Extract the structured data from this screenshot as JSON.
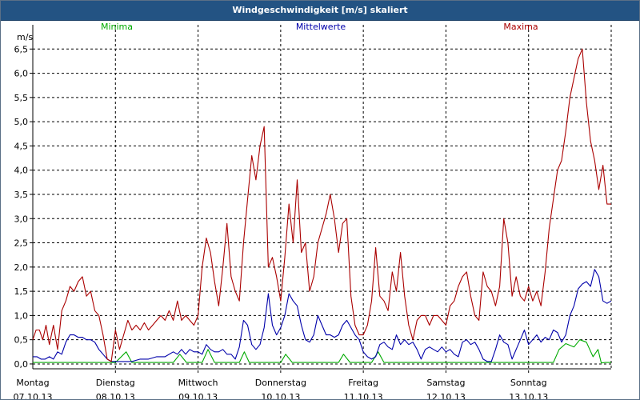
{
  "window": {
    "title": "Windgeschwindigkeit [m/s] skaliert"
  },
  "chart_data": {
    "type": "line",
    "title": "Windgeschwindigkeit [m/s] skaliert",
    "ylabel": "m/s",
    "ylim": [
      -0.1,
      7.0
    ],
    "yticks": [
      0.0,
      0.5,
      1.0,
      1.5,
      2.0,
      2.5,
      3.0,
      3.5,
      4.0,
      4.5,
      5.0,
      5.5,
      6.0,
      6.5
    ],
    "ytick_labels": [
      "0,0",
      "0,5",
      "1,0",
      "1,5",
      "2,0",
      "2,5",
      "3,0",
      "3,5",
      "4,0",
      "4,5",
      "5,0",
      "5,5",
      "6,0",
      "6,5"
    ],
    "x_range_days": [
      0,
      7
    ],
    "categories": [
      {
        "day": "Montag",
        "date": "07.10.13"
      },
      {
        "day": "Dienstag",
        "date": "08.10.13"
      },
      {
        "day": "Mittwoch",
        "date": "09.10.13"
      },
      {
        "day": "Donnerstag",
        "date": "10.10.13"
      },
      {
        "day": "Freitag",
        "date": "11.10.13"
      },
      {
        "day": "Samstag",
        "date": "12.10.13"
      },
      {
        "day": "Sonntag",
        "date": "13.10.13"
      }
    ],
    "grid": true,
    "legend_position": "top",
    "series": [
      {
        "name": "Minima",
        "color": "#00aa00",
        "values": [
          [
            0,
            0.03
          ],
          [
            1.0,
            0.03
          ],
          [
            1.13,
            0.25
          ],
          [
            1.2,
            0.03
          ],
          [
            1.7,
            0.03
          ],
          [
            1.78,
            0.2
          ],
          [
            1.86,
            0.03
          ],
          [
            2.05,
            0.03
          ],
          [
            2.12,
            0.3
          ],
          [
            2.2,
            0.03
          ],
          [
            2.5,
            0.03
          ],
          [
            2.56,
            0.25
          ],
          [
            2.62,
            0.03
          ],
          [
            3.0,
            0.03
          ],
          [
            3.06,
            0.2
          ],
          [
            3.14,
            0.03
          ],
          [
            3.7,
            0.03
          ],
          [
            3.76,
            0.2
          ],
          [
            3.84,
            0.03
          ],
          [
            4.1,
            0.03
          ],
          [
            4.18,
            0.25
          ],
          [
            4.25,
            0.03
          ],
          [
            6.0,
            0.03
          ],
          [
            6.3,
            0.03
          ],
          [
            6.37,
            0.3
          ],
          [
            6.45,
            0.42
          ],
          [
            6.55,
            0.35
          ],
          [
            6.62,
            0.5
          ],
          [
            6.7,
            0.45
          ],
          [
            6.78,
            0.15
          ],
          [
            6.84,
            0.3
          ],
          [
            6.88,
            0.02
          ],
          [
            6.93,
            0.03
          ],
          [
            7.0,
            0.03
          ]
        ]
      },
      {
        "name": "Mittelwerte",
        "color": "#0000aa",
        "values": [
          [
            0,
            0.15
          ],
          [
            0.05,
            0.15
          ],
          [
            0.1,
            0.1
          ],
          [
            0.15,
            0.1
          ],
          [
            0.2,
            0.15
          ],
          [
            0.25,
            0.1
          ],
          [
            0.3,
            0.25
          ],
          [
            0.35,
            0.2
          ],
          [
            0.4,
            0.45
          ],
          [
            0.45,
            0.6
          ],
          [
            0.5,
            0.6
          ],
          [
            0.55,
            0.55
          ],
          [
            0.6,
            0.55
          ],
          [
            0.65,
            0.5
          ],
          [
            0.7,
            0.5
          ],
          [
            0.75,
            0.45
          ],
          [
            0.8,
            0.3
          ],
          [
            0.85,
            0.2
          ],
          [
            0.9,
            0.1
          ],
          [
            0.95,
            0.05
          ],
          [
            1.0,
            0.05
          ],
          [
            1.1,
            0.05
          ],
          [
            1.2,
            0.05
          ],
          [
            1.3,
            0.1
          ],
          [
            1.4,
            0.1
          ],
          [
            1.5,
            0.15
          ],
          [
            1.6,
            0.15
          ],
          [
            1.7,
            0.25
          ],
          [
            1.75,
            0.2
          ],
          [
            1.8,
            0.3
          ],
          [
            1.85,
            0.2
          ],
          [
            1.9,
            0.3
          ],
          [
            1.95,
            0.25
          ],
          [
            2.0,
            0.25
          ],
          [
            2.05,
            0.2
          ],
          [
            2.1,
            0.4
          ],
          [
            2.15,
            0.3
          ],
          [
            2.2,
            0.25
          ],
          [
            2.25,
            0.25
          ],
          [
            2.3,
            0.3
          ],
          [
            2.35,
            0.2
          ],
          [
            2.4,
            0.2
          ],
          [
            2.45,
            0.1
          ],
          [
            2.5,
            0.35
          ],
          [
            2.55,
            0.9
          ],
          [
            2.6,
            0.8
          ],
          [
            2.65,
            0.4
          ],
          [
            2.7,
            0.3
          ],
          [
            2.75,
            0.4
          ],
          [
            2.8,
            0.75
          ],
          [
            2.85,
            1.45
          ],
          [
            2.9,
            0.8
          ],
          [
            2.95,
            0.6
          ],
          [
            3.0,
            0.75
          ],
          [
            3.05,
            1.0
          ],
          [
            3.1,
            1.45
          ],
          [
            3.15,
            1.3
          ],
          [
            3.2,
            1.2
          ],
          [
            3.25,
            0.8
          ],
          [
            3.3,
            0.5
          ],
          [
            3.35,
            0.45
          ],
          [
            3.4,
            0.6
          ],
          [
            3.45,
            1.0
          ],
          [
            3.5,
            0.8
          ],
          [
            3.55,
            0.6
          ],
          [
            3.6,
            0.6
          ],
          [
            3.65,
            0.55
          ],
          [
            3.7,
            0.6
          ],
          [
            3.75,
            0.8
          ],
          [
            3.8,
            0.9
          ],
          [
            3.85,
            0.75
          ],
          [
            3.9,
            0.6
          ],
          [
            3.95,
            0.5
          ],
          [
            4.0,
            0.25
          ],
          [
            4.05,
            0.15
          ],
          [
            4.1,
            0.1
          ],
          [
            4.15,
            0.15
          ],
          [
            4.2,
            0.4
          ],
          [
            4.25,
            0.45
          ],
          [
            4.3,
            0.35
          ],
          [
            4.35,
            0.3
          ],
          [
            4.4,
            0.6
          ],
          [
            4.45,
            0.4
          ],
          [
            4.5,
            0.5
          ],
          [
            4.55,
            0.4
          ],
          [
            4.6,
            0.45
          ],
          [
            4.65,
            0.3
          ],
          [
            4.7,
            0.1
          ],
          [
            4.75,
            0.3
          ],
          [
            4.8,
            0.35
          ],
          [
            4.85,
            0.3
          ],
          [
            4.9,
            0.25
          ],
          [
            4.95,
            0.35
          ],
          [
            5.0,
            0.25
          ],
          [
            5.05,
            0.3
          ],
          [
            5.1,
            0.2
          ],
          [
            5.15,
            0.15
          ],
          [
            5.2,
            0.45
          ],
          [
            5.25,
            0.5
          ],
          [
            5.3,
            0.4
          ],
          [
            5.35,
            0.45
          ],
          [
            5.4,
            0.3
          ],
          [
            5.45,
            0.1
          ],
          [
            5.5,
            0.05
          ],
          [
            5.55,
            0.05
          ],
          [
            5.6,
            0.3
          ],
          [
            5.65,
            0.6
          ],
          [
            5.7,
            0.45
          ],
          [
            5.75,
            0.4
          ],
          [
            5.8,
            0.1
          ],
          [
            5.85,
            0.3
          ],
          [
            5.9,
            0.5
          ],
          [
            5.95,
            0.7
          ],
          [
            6.0,
            0.4
          ],
          [
            6.05,
            0.5
          ],
          [
            6.1,
            0.6
          ],
          [
            6.15,
            0.45
          ],
          [
            6.2,
            0.55
          ],
          [
            6.25,
            0.5
          ],
          [
            6.3,
            0.7
          ],
          [
            6.35,
            0.65
          ],
          [
            6.4,
            0.45
          ],
          [
            6.45,
            0.6
          ],
          [
            6.5,
            1.0
          ],
          [
            6.55,
            1.2
          ],
          [
            6.6,
            1.55
          ],
          [
            6.65,
            1.65
          ],
          [
            6.7,
            1.7
          ],
          [
            6.75,
            1.6
          ],
          [
            6.8,
            1.95
          ],
          [
            6.85,
            1.8
          ],
          [
            6.9,
            1.3
          ],
          [
            6.95,
            1.25
          ],
          [
            7.0,
            1.3
          ]
        ]
      },
      {
        "name": "Maxima",
        "color": "#aa0000",
        "values": [
          [
            0,
            0.5
          ],
          [
            0.04,
            0.7
          ],
          [
            0.08,
            0.7
          ],
          [
            0.12,
            0.5
          ],
          [
            0.16,
            0.8
          ],
          [
            0.2,
            0.4
          ],
          [
            0.25,
            0.8
          ],
          [
            0.3,
            0.3
          ],
          [
            0.35,
            1.1
          ],
          [
            0.4,
            1.3
          ],
          [
            0.45,
            1.6
          ],
          [
            0.5,
            1.5
          ],
          [
            0.55,
            1.7
          ],
          [
            0.6,
            1.8
          ],
          [
            0.65,
            1.4
          ],
          [
            0.7,
            1.5
          ],
          [
            0.75,
            1.1
          ],
          [
            0.8,
            1.0
          ],
          [
            0.85,
            0.6
          ],
          [
            0.9,
            0.1
          ],
          [
            0.95,
            0.05
          ],
          [
            1.0,
            0.7
          ],
          [
            1.05,
            0.3
          ],
          [
            1.1,
            0.6
          ],
          [
            1.15,
            0.9
          ],
          [
            1.2,
            0.7
          ],
          [
            1.25,
            0.8
          ],
          [
            1.3,
            0.7
          ],
          [
            1.35,
            0.85
          ],
          [
            1.4,
            0.7
          ],
          [
            1.45,
            0.8
          ],
          [
            1.5,
            0.9
          ],
          [
            1.55,
            1.0
          ],
          [
            1.6,
            0.9
          ],
          [
            1.65,
            1.1
          ],
          [
            1.7,
            0.9
          ],
          [
            1.75,
            1.3
          ],
          [
            1.8,
            0.9
          ],
          [
            1.85,
            1.0
          ],
          [
            1.9,
            0.9
          ],
          [
            1.95,
            0.8
          ],
          [
            2.0,
            1.0
          ],
          [
            2.05,
            2.0
          ],
          [
            2.1,
            2.6
          ],
          [
            2.15,
            2.3
          ],
          [
            2.2,
            1.7
          ],
          [
            2.25,
            1.2
          ],
          [
            2.3,
            2.0
          ],
          [
            2.35,
            2.9
          ],
          [
            2.4,
            1.8
          ],
          [
            2.45,
            1.5
          ],
          [
            2.5,
            1.3
          ],
          [
            2.55,
            2.5
          ],
          [
            2.6,
            3.4
          ],
          [
            2.65,
            4.3
          ],
          [
            2.7,
            3.8
          ],
          [
            2.75,
            4.5
          ],
          [
            2.8,
            4.9
          ],
          [
            2.85,
            2.0
          ],
          [
            2.9,
            2.2
          ],
          [
            2.95,
            1.8
          ],
          [
            3.0,
            1.3
          ],
          [
            3.05,
            2.2
          ],
          [
            3.1,
            3.3
          ],
          [
            3.15,
            2.5
          ],
          [
            3.2,
            3.8
          ],
          [
            3.25,
            2.3
          ],
          [
            3.3,
            2.5
          ],
          [
            3.35,
            1.5
          ],
          [
            3.4,
            1.8
          ],
          [
            3.45,
            2.5
          ],
          [
            3.5,
            2.8
          ],
          [
            3.55,
            3.1
          ],
          [
            3.6,
            3.5
          ],
          [
            3.65,
            3.0
          ],
          [
            3.7,
            2.3
          ],
          [
            3.75,
            2.9
          ],
          [
            3.8,
            3.0
          ],
          [
            3.85,
            1.4
          ],
          [
            3.9,
            0.8
          ],
          [
            3.95,
            0.6
          ],
          [
            4.0,
            0.6
          ],
          [
            4.05,
            0.8
          ],
          [
            4.1,
            1.3
          ],
          [
            4.15,
            2.4
          ],
          [
            4.2,
            1.4
          ],
          [
            4.25,
            1.3
          ],
          [
            4.3,
            1.1
          ],
          [
            4.35,
            1.9
          ],
          [
            4.4,
            1.5
          ],
          [
            4.45,
            2.3
          ],
          [
            4.5,
            1.4
          ],
          [
            4.55,
            0.8
          ],
          [
            4.6,
            0.5
          ],
          [
            4.65,
            0.9
          ],
          [
            4.7,
            1.0
          ],
          [
            4.75,
            1.0
          ],
          [
            4.8,
            0.8
          ],
          [
            4.85,
            1.0
          ],
          [
            4.9,
            1.0
          ],
          [
            4.95,
            0.9
          ],
          [
            5.0,
            0.8
          ],
          [
            5.05,
            1.2
          ],
          [
            5.1,
            1.3
          ],
          [
            5.15,
            1.6
          ],
          [
            5.2,
            1.8
          ],
          [
            5.25,
            1.9
          ],
          [
            5.3,
            1.4
          ],
          [
            5.35,
            1.0
          ],
          [
            5.4,
            0.9
          ],
          [
            5.45,
            1.9
          ],
          [
            5.5,
            1.6
          ],
          [
            5.55,
            1.5
          ],
          [
            5.6,
            1.2
          ],
          [
            5.65,
            1.6
          ],
          [
            5.7,
            3.0
          ],
          [
            5.75,
            2.5
          ],
          [
            5.8,
            1.4
          ],
          [
            5.85,
            1.8
          ],
          [
            5.9,
            1.4
          ],
          [
            5.95,
            1.3
          ],
          [
            6.0,
            1.6
          ],
          [
            6.05,
            1.3
          ],
          [
            6.1,
            1.5
          ],
          [
            6.15,
            1.2
          ],
          [
            6.2,
            1.9
          ],
          [
            6.25,
            2.8
          ],
          [
            6.3,
            3.4
          ],
          [
            6.35,
            4.0
          ],
          [
            6.4,
            4.2
          ],
          [
            6.45,
            4.8
          ],
          [
            6.5,
            5.5
          ],
          [
            6.55,
            5.9
          ],
          [
            6.6,
            6.3
          ],
          [
            6.65,
            6.5
          ],
          [
            6.7,
            5.4
          ],
          [
            6.75,
            4.6
          ],
          [
            6.8,
            4.2
          ],
          [
            6.85,
            3.6
          ],
          [
            6.9,
            4.1
          ],
          [
            6.95,
            3.3
          ],
          [
            7.0,
            3.3
          ]
        ]
      }
    ]
  }
}
